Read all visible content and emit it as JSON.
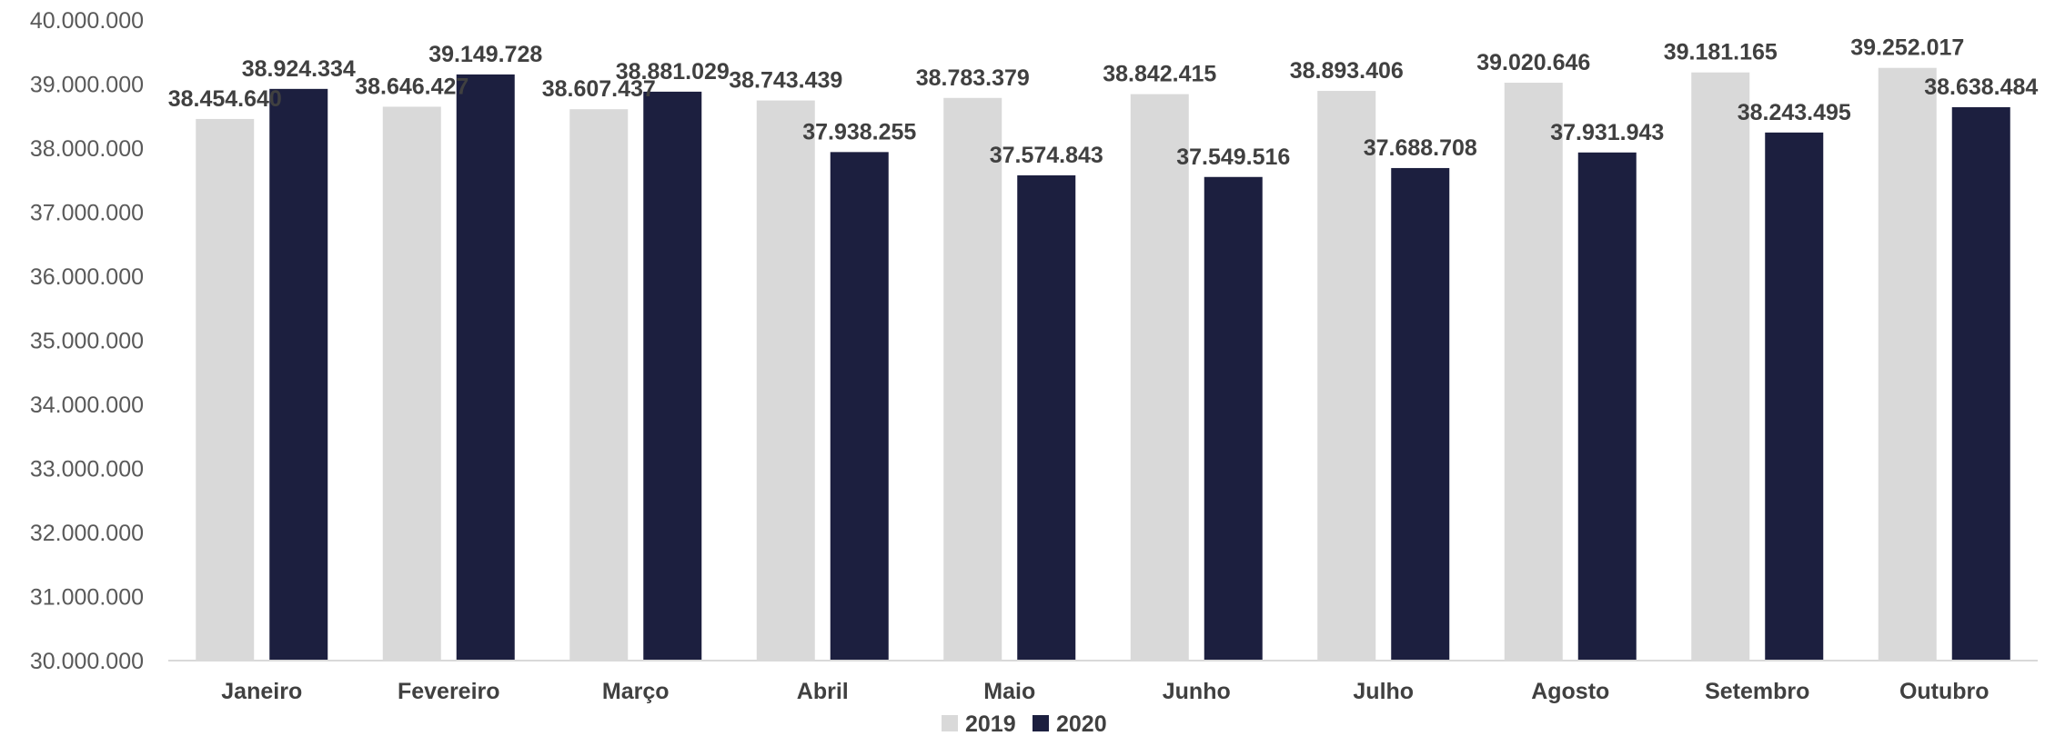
{
  "chart_data": {
    "type": "bar",
    "title": "",
    "xlabel": "",
    "ylabel": "",
    "ylim": [
      30000000,
      40000000
    ],
    "y_ticks": [
      30000000,
      31000000,
      32000000,
      33000000,
      34000000,
      35000000,
      36000000,
      37000000,
      38000000,
      39000000,
      40000000
    ],
    "y_tick_labels": [
      "30.000.000",
      "31.000.000",
      "32.000.000",
      "33.000.000",
      "34.000.000",
      "35.000.000",
      "36.000.000",
      "37.000.000",
      "38.000.000",
      "39.000.000",
      "40.000.000"
    ],
    "grid": false,
    "legend_position": "bottom",
    "categories": [
      "Janeiro",
      "Fevereiro",
      "Março",
      "Abril",
      "Maio",
      "Junho",
      "Julho",
      "Agosto",
      "Setembro",
      "Outubro"
    ],
    "series": [
      {
        "name": "2019",
        "color": "#d9d9d9",
        "values": [
          38454640,
          38646427,
          38607437,
          38743439,
          38783379,
          38842415,
          38893406,
          39020646,
          39181165,
          39252017
        ],
        "labels": [
          "38.454.640",
          "38.646.427",
          "38.607.437",
          "38.743.439",
          "38.783.379",
          "38.842.415",
          "38.893.406",
          "39.020.646",
          "39.181.165",
          "39.252.017"
        ]
      },
      {
        "name": "2020",
        "color": "#1c1f3f",
        "values": [
          38924334,
          39149728,
          38881029,
          37938255,
          37574843,
          37549516,
          37688708,
          37931943,
          38243495,
          38638484
        ],
        "labels": [
          "38.924.334",
          "39.149.728",
          "38.881.029",
          "37.938.255",
          "37.574.843",
          "37.549.516",
          "37.688.708",
          "37.931.943",
          "38.243.495",
          "38.638.484"
        ]
      }
    ]
  }
}
